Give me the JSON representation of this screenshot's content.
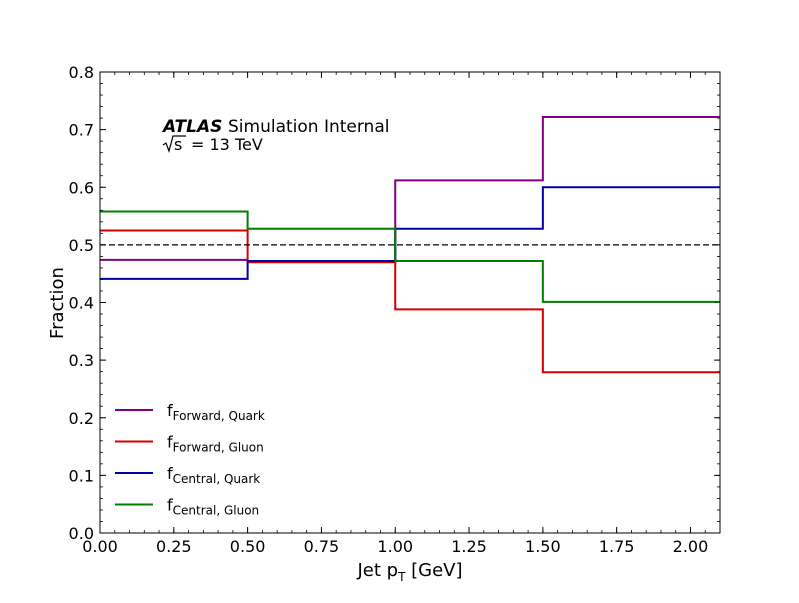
{
  "chart_data": {
    "type": "line",
    "drawstyle": "step",
    "title": "",
    "xlabel": "Jet p",
    "xlabel_sub": "T",
    "xlabel_unit": " [GeV]",
    "ylabel": "Fraction",
    "xlim": [
      0.0,
      2.1
    ],
    "ylim": [
      0.0,
      0.8
    ],
    "xticks": [
      0.0,
      0.25,
      0.5,
      0.75,
      1.0,
      1.25,
      1.5,
      1.75,
      2.0
    ],
    "xtick_labels": [
      "0.00",
      "0.25",
      "0.50",
      "0.75",
      "1.00",
      "1.25",
      "1.50",
      "1.75",
      "2.00"
    ],
    "yticks": [
      0.0,
      0.1,
      0.2,
      0.3,
      0.4,
      0.5,
      0.6,
      0.7,
      0.8
    ],
    "ytick_labels": [
      "0.0",
      "0.1",
      "0.2",
      "0.3",
      "0.4",
      "0.5",
      "0.6",
      "0.7",
      "0.8"
    ],
    "bin_edges": [
      0.0,
      0.5,
      1.0,
      1.5,
      2.1
    ],
    "series": [
      {
        "name": "f",
        "name_sub": "Forward, Quark",
        "color": "#7f007f",
        "values": [
          0.474,
          0.47,
          0.612,
          0.722
        ]
      },
      {
        "name": "f",
        "name_sub": "Forward, Gluon",
        "color": "#d40000",
        "values": [
          0.525,
          0.47,
          0.388,
          0.279
        ]
      },
      {
        "name": "f",
        "name_sub": "Central, Quark",
        "color": "#0000aa",
        "values": [
          0.441,
          0.472,
          0.528,
          0.6
        ]
      },
      {
        "name": "f",
        "name_sub": "Central, Gluon",
        "color": "#007f00",
        "values": [
          0.558,
          0.528,
          0.472,
          0.401
        ]
      }
    ],
    "reference_line": {
      "y": 0.5,
      "style": "dashed",
      "color": "#000000"
    },
    "annotation": {
      "experiment": "ATLAS",
      "status": "Simulation Internal",
      "energy_label": "s",
      "energy_value": "=  13 TeV"
    },
    "legend_position": "lower-left",
    "grid": false
  }
}
